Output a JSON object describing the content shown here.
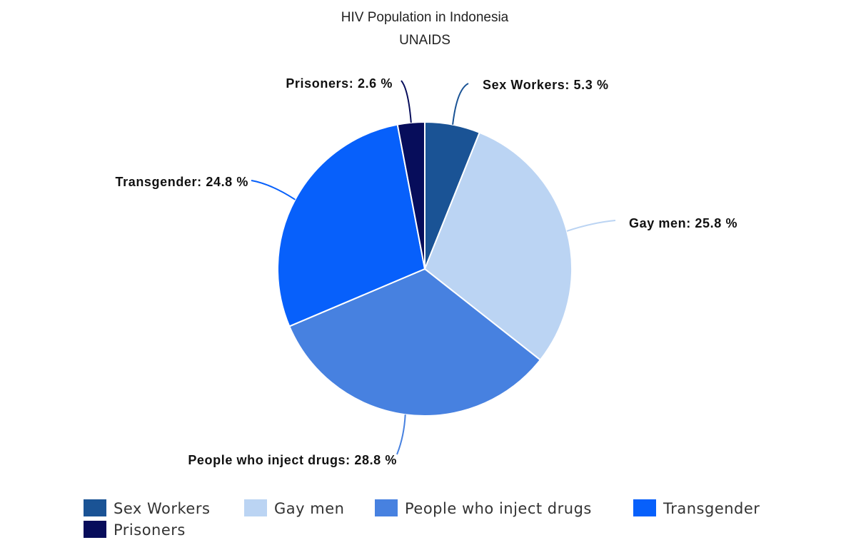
{
  "chart_data": {
    "type": "pie",
    "title": "HIV Population in Indonesia",
    "subtitle": "UNAIDS",
    "unit": "%",
    "legend_position": "bottom",
    "slices": [
      {
        "name": "Sex Workers",
        "value": 5.3,
        "color": "#1a5395"
      },
      {
        "name": "Gay men",
        "value": 25.8,
        "color": "#bbd4f3"
      },
      {
        "name": "People who inject drugs",
        "value": 28.8,
        "color": "#4781e0"
      },
      {
        "name": "Transgender",
        "value": 24.8,
        "color": "#0760fb"
      },
      {
        "name": "Prisoners",
        "value": 2.6,
        "color": "#070d5b"
      }
    ]
  }
}
